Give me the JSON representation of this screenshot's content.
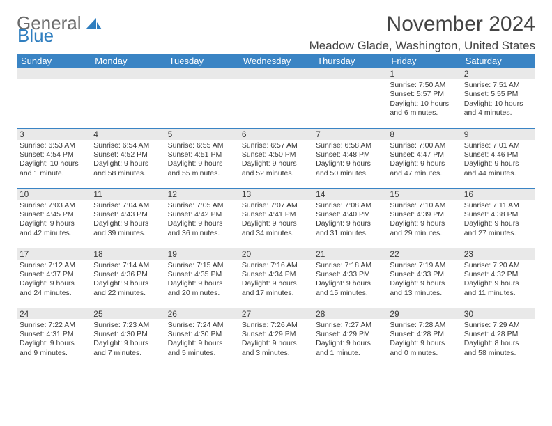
{
  "logo": {
    "word1": "General",
    "word2": "Blue",
    "icon_color": "#2f7ebf",
    "text_gray": "#6b6b6b"
  },
  "title": "November 2024",
  "location": "Meadow Glade, Washington, United States",
  "colors": {
    "header_bg": "#3a84c4",
    "header_text": "#ffffff",
    "daynum_bg": "#e9e9e9",
    "cell_text": "#3a3a3a",
    "border": "#3a84c4",
    "page_bg": "#ffffff"
  },
  "day_headers": [
    "Sunday",
    "Monday",
    "Tuesday",
    "Wednesday",
    "Thursday",
    "Friday",
    "Saturday"
  ],
  "weeks": [
    [
      null,
      null,
      null,
      null,
      null,
      {
        "n": "1",
        "sunrise": "Sunrise: 7:50 AM",
        "sunset": "Sunset: 5:57 PM",
        "daylight": "Daylight: 10 hours and 6 minutes."
      },
      {
        "n": "2",
        "sunrise": "Sunrise: 7:51 AM",
        "sunset": "Sunset: 5:55 PM",
        "daylight": "Daylight: 10 hours and 4 minutes."
      }
    ],
    [
      {
        "n": "3",
        "sunrise": "Sunrise: 6:53 AM",
        "sunset": "Sunset: 4:54 PM",
        "daylight": "Daylight: 10 hours and 1 minute."
      },
      {
        "n": "4",
        "sunrise": "Sunrise: 6:54 AM",
        "sunset": "Sunset: 4:52 PM",
        "daylight": "Daylight: 9 hours and 58 minutes."
      },
      {
        "n": "5",
        "sunrise": "Sunrise: 6:55 AM",
        "sunset": "Sunset: 4:51 PM",
        "daylight": "Daylight: 9 hours and 55 minutes."
      },
      {
        "n": "6",
        "sunrise": "Sunrise: 6:57 AM",
        "sunset": "Sunset: 4:50 PM",
        "daylight": "Daylight: 9 hours and 52 minutes."
      },
      {
        "n": "7",
        "sunrise": "Sunrise: 6:58 AM",
        "sunset": "Sunset: 4:48 PM",
        "daylight": "Daylight: 9 hours and 50 minutes."
      },
      {
        "n": "8",
        "sunrise": "Sunrise: 7:00 AM",
        "sunset": "Sunset: 4:47 PM",
        "daylight": "Daylight: 9 hours and 47 minutes."
      },
      {
        "n": "9",
        "sunrise": "Sunrise: 7:01 AM",
        "sunset": "Sunset: 4:46 PM",
        "daylight": "Daylight: 9 hours and 44 minutes."
      }
    ],
    [
      {
        "n": "10",
        "sunrise": "Sunrise: 7:03 AM",
        "sunset": "Sunset: 4:45 PM",
        "daylight": "Daylight: 9 hours and 42 minutes."
      },
      {
        "n": "11",
        "sunrise": "Sunrise: 7:04 AM",
        "sunset": "Sunset: 4:43 PM",
        "daylight": "Daylight: 9 hours and 39 minutes."
      },
      {
        "n": "12",
        "sunrise": "Sunrise: 7:05 AM",
        "sunset": "Sunset: 4:42 PM",
        "daylight": "Daylight: 9 hours and 36 minutes."
      },
      {
        "n": "13",
        "sunrise": "Sunrise: 7:07 AM",
        "sunset": "Sunset: 4:41 PM",
        "daylight": "Daylight: 9 hours and 34 minutes."
      },
      {
        "n": "14",
        "sunrise": "Sunrise: 7:08 AM",
        "sunset": "Sunset: 4:40 PM",
        "daylight": "Daylight: 9 hours and 31 minutes."
      },
      {
        "n": "15",
        "sunrise": "Sunrise: 7:10 AM",
        "sunset": "Sunset: 4:39 PM",
        "daylight": "Daylight: 9 hours and 29 minutes."
      },
      {
        "n": "16",
        "sunrise": "Sunrise: 7:11 AM",
        "sunset": "Sunset: 4:38 PM",
        "daylight": "Daylight: 9 hours and 27 minutes."
      }
    ],
    [
      {
        "n": "17",
        "sunrise": "Sunrise: 7:12 AM",
        "sunset": "Sunset: 4:37 PM",
        "daylight": "Daylight: 9 hours and 24 minutes."
      },
      {
        "n": "18",
        "sunrise": "Sunrise: 7:14 AM",
        "sunset": "Sunset: 4:36 PM",
        "daylight": "Daylight: 9 hours and 22 minutes."
      },
      {
        "n": "19",
        "sunrise": "Sunrise: 7:15 AM",
        "sunset": "Sunset: 4:35 PM",
        "daylight": "Daylight: 9 hours and 20 minutes."
      },
      {
        "n": "20",
        "sunrise": "Sunrise: 7:16 AM",
        "sunset": "Sunset: 4:34 PM",
        "daylight": "Daylight: 9 hours and 17 minutes."
      },
      {
        "n": "21",
        "sunrise": "Sunrise: 7:18 AM",
        "sunset": "Sunset: 4:33 PM",
        "daylight": "Daylight: 9 hours and 15 minutes."
      },
      {
        "n": "22",
        "sunrise": "Sunrise: 7:19 AM",
        "sunset": "Sunset: 4:33 PM",
        "daylight": "Daylight: 9 hours and 13 minutes."
      },
      {
        "n": "23",
        "sunrise": "Sunrise: 7:20 AM",
        "sunset": "Sunset: 4:32 PM",
        "daylight": "Daylight: 9 hours and 11 minutes."
      }
    ],
    [
      {
        "n": "24",
        "sunrise": "Sunrise: 7:22 AM",
        "sunset": "Sunset: 4:31 PM",
        "daylight": "Daylight: 9 hours and 9 minutes."
      },
      {
        "n": "25",
        "sunrise": "Sunrise: 7:23 AM",
        "sunset": "Sunset: 4:30 PM",
        "daylight": "Daylight: 9 hours and 7 minutes."
      },
      {
        "n": "26",
        "sunrise": "Sunrise: 7:24 AM",
        "sunset": "Sunset: 4:30 PM",
        "daylight": "Daylight: 9 hours and 5 minutes."
      },
      {
        "n": "27",
        "sunrise": "Sunrise: 7:26 AM",
        "sunset": "Sunset: 4:29 PM",
        "daylight": "Daylight: 9 hours and 3 minutes."
      },
      {
        "n": "28",
        "sunrise": "Sunrise: 7:27 AM",
        "sunset": "Sunset: 4:29 PM",
        "daylight": "Daylight: 9 hours and 1 minute."
      },
      {
        "n": "29",
        "sunrise": "Sunrise: 7:28 AM",
        "sunset": "Sunset: 4:28 PM",
        "daylight": "Daylight: 9 hours and 0 minutes."
      },
      {
        "n": "30",
        "sunrise": "Sunrise: 7:29 AM",
        "sunset": "Sunset: 4:28 PM",
        "daylight": "Daylight: 8 hours and 58 minutes."
      }
    ]
  ]
}
